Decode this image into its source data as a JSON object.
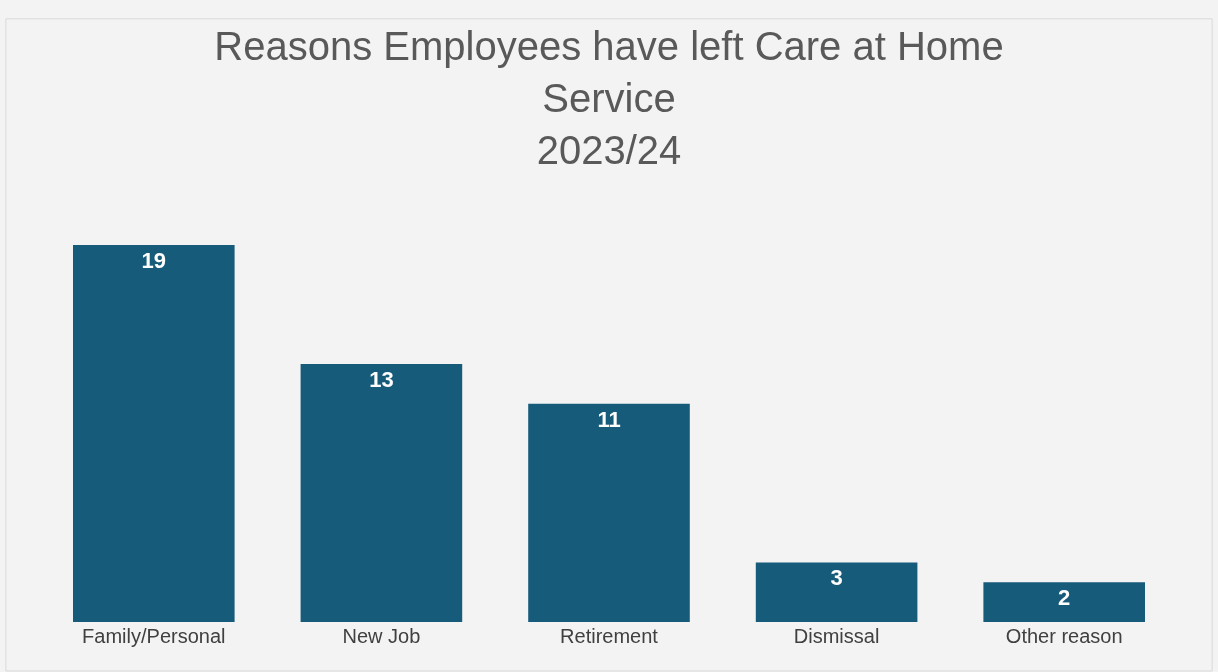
{
  "chart_data": {
    "type": "bar",
    "title": "Reasons Employees have left Care at Home Service",
    "subtitle": "2023/24",
    "categories": [
      "Family/Personal",
      "New Job",
      "Retirement",
      "Dismissal",
      "Other reason"
    ],
    "values": [
      19,
      13,
      11,
      3,
      2
    ],
    "color": "#175b7b",
    "data_labels": true,
    "grid": false,
    "legend": false
  }
}
